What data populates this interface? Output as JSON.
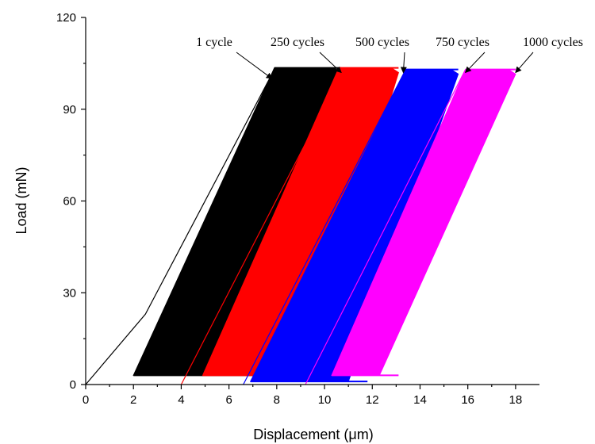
{
  "chart_data": {
    "type": "line",
    "xlabel": "Displacement (μm)",
    "ylabel": "Load (mN)",
    "xlim": [
      0,
      19
    ],
    "ylim": [
      0,
      120
    ],
    "x_ticks": [
      0,
      2,
      4,
      6,
      8,
      10,
      12,
      14,
      16,
      18
    ],
    "y_ticks": [
      0,
      30,
      60,
      90,
      120
    ],
    "grid": false,
    "legend": "none",
    "series": [
      {
        "name": "1 cycle",
        "color": "#000000",
        "loading_curve": [
          [
            0.0,
            0.0
          ],
          [
            2.5,
            23.0
          ],
          [
            7.9,
            103.0
          ]
        ],
        "band": {
          "left_bottom": 2.0,
          "right_bottom": 6.2,
          "left_top": 7.9,
          "right_top": 10.7,
          "y_bottom": 3.0,
          "y_top": 103.5
        }
      },
      {
        "name": "250 cycles",
        "color": "#ff0000",
        "initial_curve": [
          [
            4.0,
            0.0
          ],
          [
            10.8,
            103.0
          ]
        ],
        "band": {
          "left_bottom": 4.9,
          "right_bottom": 9.2,
          "left_top": 10.6,
          "right_top": 13.1,
          "y_bottom": 3.0,
          "y_top": 103.5
        }
      },
      {
        "name": "500 cycles",
        "color": "#0000ff",
        "initial_curve": [
          [
            6.6,
            0.0
          ],
          [
            13.4,
            103.0
          ]
        ],
        "band": {
          "left_bottom": 6.9,
          "right_bottom": 11.0,
          "left_top": 13.4,
          "right_top": 15.6,
          "y_bottom": 1.0,
          "y_top": 103.0
        }
      },
      {
        "name": "750 cycles",
        "color": "#ff00ff",
        "initial_curve": [
          [
            9.2,
            0.0
          ],
          [
            15.9,
            103.0
          ]
        ],
        "band": {
          "left_bottom": 10.3,
          "right_bottom": 12.3,
          "left_top": 15.9,
          "right_top": 18.0,
          "y_bottom": 3.0,
          "y_top": 103.0
        }
      }
    ],
    "annotations": [
      {
        "text": "1 cycle",
        "arrow_to": [
          7.8,
          100.0
        ]
      },
      {
        "text": "250 cycles",
        "arrow_to": [
          10.7,
          102.0
        ]
      },
      {
        "text": "500 cycles",
        "arrow_to": [
          13.3,
          102.0
        ]
      },
      {
        "text": "750 cycles",
        "arrow_to": [
          15.9,
          102.0
        ]
      },
      {
        "text": "1000 cycles",
        "arrow_to": [
          18.0,
          102.0
        ]
      }
    ]
  }
}
